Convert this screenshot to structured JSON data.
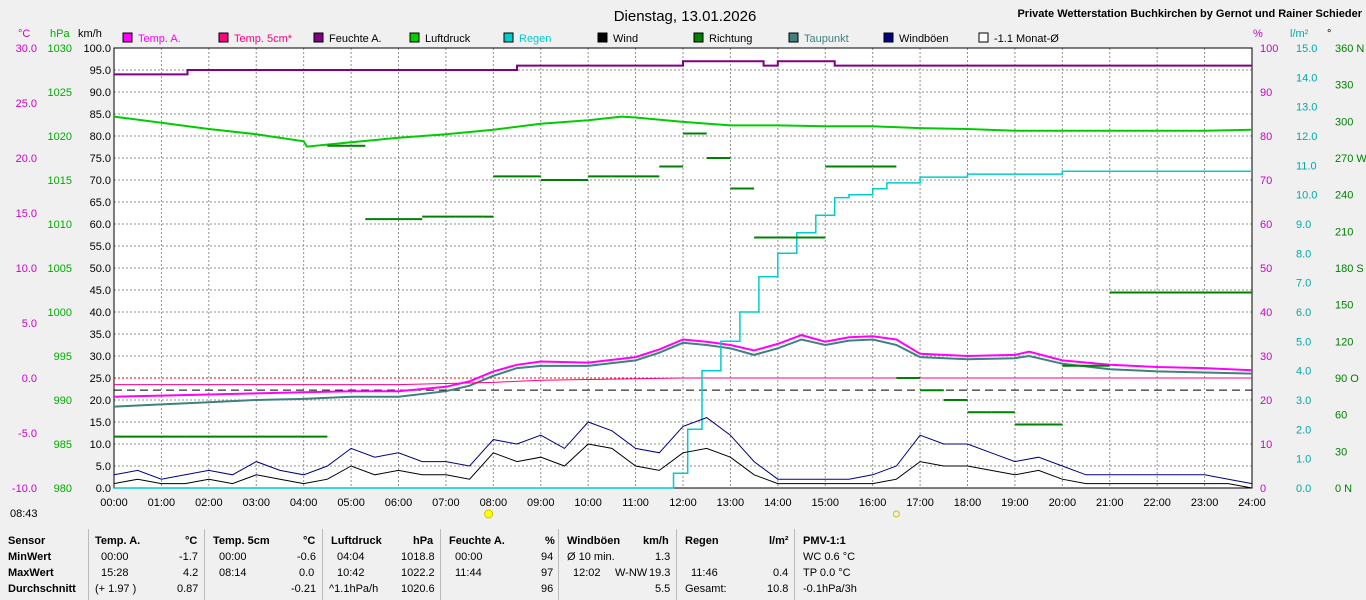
{
  "header": {
    "title": "Dienstag, 13.01.2026",
    "station": "Private Wetterstation Buchkirchen by Gernot und Rainer Schieder",
    "current_time": "08:43"
  },
  "units": {
    "temp": "°C",
    "pressure": "hPa",
    "speed": "km/h",
    "humidity": "%",
    "rain": "l/m²",
    "direction": "°"
  },
  "legend": [
    {
      "label": "Temp. A.",
      "color": "#ff00ff"
    },
    {
      "label": "Temp. 5cm*",
      "color": "#ff0080"
    },
    {
      "label": "Feuchte A.",
      "color": "#800080"
    },
    {
      "label": "Luftdruck",
      "color": "#00cc00"
    },
    {
      "label": "Regen",
      "color": "#00cccc"
    },
    {
      "label": "Wind",
      "color": "#000000"
    },
    {
      "label": "Richtung",
      "color": "#008000"
    },
    {
      "label": "Taupunkt",
      "color": "#408080"
    },
    {
      "label": "Windböen",
      "color": "#000080"
    },
    {
      "label": "-1.1 Monat-Ø",
      "color": "#ffffff"
    }
  ],
  "chart_data": {
    "type": "line",
    "x_range_hours": [
      0,
      24
    ],
    "x_ticks": [
      "00:00",
      "01:00",
      "02:00",
      "03:00",
      "04:00",
      "05:00",
      "06:00",
      "07:00",
      "08:00",
      "09:00",
      "10:00",
      "11:00",
      "12:00",
      "13:00",
      "14:00",
      "15:00",
      "16:00",
      "17:00",
      "18:00",
      "19:00",
      "20:00",
      "21:00",
      "22:00",
      "23:00",
      "24:00"
    ],
    "axes": {
      "temp_ticks": [
        "30.0",
        "25.0",
        "20.0",
        "15.0",
        "10.0",
        "5.0",
        "0.0",
        "-5.0",
        "-10.0"
      ],
      "pressure_ticks": [
        "1030",
        "1025",
        "1020",
        "1015",
        "1010",
        "1005",
        "1000",
        "995",
        "990",
        "985",
        "980"
      ],
      "speed_ticks": [
        "100.0",
        "95.0",
        "90.0",
        "85.0",
        "80.0",
        "75.0",
        "70.0",
        "65.0",
        "60.0",
        "55.0",
        "50.0",
        "45.0",
        "40.0",
        "35.0",
        "30.0",
        "25.0",
        "20.0",
        "15.0",
        "10.0",
        "5.0",
        "0.0"
      ],
      "humidity_ticks": [
        "100",
        "90",
        "80",
        "70",
        "60",
        "50",
        "40",
        "30",
        "20",
        "10",
        "0"
      ],
      "rain_ticks": [
        "15.0",
        "14.0",
        "13.0",
        "12.0",
        "11.0",
        "10.0",
        "9.0",
        "8.0",
        "7.0",
        "6.0",
        "5.0",
        "4.0",
        "3.0",
        "2.0",
        "1.0",
        "0.0"
      ],
      "direction_ticks": [
        "360 N",
        "330",
        "300",
        "270 W",
        "240",
        "210",
        "180 S",
        "150",
        "120",
        "90 O",
        "60",
        "30",
        "0 N"
      ],
      "temp_range": [
        -10,
        30
      ],
      "pressure_range": [
        980,
        1030
      ],
      "speed_range": [
        0,
        100
      ],
      "humidity_range": [
        0,
        100
      ],
      "rain_range": [
        0,
        15
      ],
      "direction_range": [
        0,
        360
      ]
    },
    "monthly_mean_temp": -1.1,
    "series": [
      {
        "name": "Temp. A.",
        "axis": "temp",
        "x": [
          0,
          1,
          2,
          3,
          4,
          5,
          6,
          7,
          7.5,
          8,
          8.5,
          9,
          10,
          11,
          11.5,
          12,
          12.5,
          13,
          13.5,
          14,
          14.5,
          15,
          15.5,
          16,
          16.5,
          17,
          18,
          19,
          19.3,
          20,
          21,
          22,
          23,
          24
        ],
        "y": [
          -1.7,
          -1.6,
          -1.5,
          -1.4,
          -1.3,
          -1.2,
          -1.2,
          -0.8,
          -0.3,
          0.6,
          1.2,
          1.5,
          1.4,
          1.9,
          2.6,
          3.5,
          3.3,
          3.0,
          2.5,
          3.1,
          3.9,
          3.3,
          3.7,
          3.8,
          3.5,
          2.2,
          2.0,
          2.1,
          2.4,
          1.6,
          1.2,
          1.0,
          0.9,
          0.7
        ]
      },
      {
        "name": "Temp. 5cm*",
        "axis": "temp",
        "x": [
          0,
          4,
          6,
          7,
          8,
          9,
          12,
          16,
          20,
          24
        ],
        "y": [
          -0.6,
          -0.6,
          -0.6,
          -0.5,
          -0.4,
          -0.2,
          0.0,
          0.0,
          0.0,
          0.0
        ]
      },
      {
        "name": "Taupunkt",
        "axis": "temp",
        "x": [
          0,
          1,
          2,
          3,
          4,
          5,
          6,
          7,
          7.5,
          8,
          8.5,
          9,
          10,
          11,
          11.5,
          12,
          12.5,
          13,
          13.5,
          14,
          14.5,
          15,
          15.5,
          16,
          16.5,
          17,
          18,
          19,
          19.3,
          20,
          21,
          22,
          23,
          24
        ],
        "y": [
          -2.6,
          -2.4,
          -2.2,
          -2.0,
          -1.9,
          -1.7,
          -1.7,
          -1.2,
          -0.7,
          0.2,
          0.9,
          1.1,
          1.1,
          1.6,
          2.3,
          3.2,
          3.0,
          2.7,
          2.1,
          2.7,
          3.5,
          3.0,
          3.4,
          3.5,
          3.0,
          1.9,
          1.7,
          1.8,
          2.0,
          1.3,
          0.8,
          0.6,
          0.5,
          0.4
        ]
      },
      {
        "name": "Feuchte A.",
        "axis": "humidity",
        "x": [
          0,
          1.5,
          1.55,
          7.8,
          8.5,
          9,
          11.7,
          12,
          13.7,
          14,
          15.2,
          15.5,
          24
        ],
        "y": [
          94,
          94,
          95,
          95,
          96,
          96,
          96,
          97,
          96,
          97,
          96,
          96,
          96
        ]
      },
      {
        "name": "Luftdruck",
        "axis": "pressure",
        "x": [
          0,
          1,
          2,
          3,
          4,
          4.07,
          5,
          6,
          7,
          8,
          9,
          10,
          10.7,
          11,
          12,
          13,
          14,
          15,
          16,
          17,
          18,
          19,
          20,
          21,
          22,
          23,
          24
        ],
        "y": [
          1022.2,
          1021.5,
          1020.8,
          1020.2,
          1019.4,
          1018.8,
          1019.3,
          1019.8,
          1020.2,
          1020.7,
          1021.4,
          1021.8,
          1022.2,
          1022.1,
          1021.6,
          1021.2,
          1021.2,
          1021.1,
          1021.1,
          1020.9,
          1020.8,
          1020.6,
          1020.6,
          1020.6,
          1020.6,
          1020.6,
          1020.7
        ]
      },
      {
        "name": "Regen",
        "axis": "rain",
        "x": [
          0,
          11.5,
          11.8,
          12.1,
          12.4,
          12.8,
          13.2,
          13.6,
          14.0,
          14.4,
          14.8,
          15.2,
          15.5,
          16.0,
          16.3,
          17.0,
          18.0,
          20.0,
          24.0
        ],
        "y": [
          0,
          0,
          0.5,
          2.0,
          4.0,
          5.0,
          6.0,
          7.2,
          8.0,
          8.7,
          9.3,
          9.9,
          10.0,
          10.2,
          10.4,
          10.6,
          10.7,
          10.8,
          10.8
        ]
      },
      {
        "name": "Wind",
        "axis": "speed",
        "x": [
          0,
          0.5,
          1,
          1.5,
          2,
          2.5,
          3,
          3.5,
          4,
          4.5,
          5,
          5.5,
          6,
          6.5,
          7,
          7.5,
          8,
          8.5,
          9,
          9.5,
          10,
          10.5,
          11,
          11.5,
          12,
          12.5,
          13,
          13.5,
          14,
          14.5,
          15,
          15.5,
          16,
          16.5,
          17,
          17.5,
          18,
          18.5,
          19,
          19.5,
          20,
          20.5,
          21,
          21.5,
          22,
          22.5,
          23,
          23.5,
          24
        ],
        "y": [
          1,
          2,
          1,
          1,
          2,
          1,
          3,
          2,
          1,
          2,
          5,
          3,
          4,
          3,
          3,
          2,
          8,
          6,
          7,
          5,
          10,
          9,
          5,
          4,
          8,
          9,
          7,
          3,
          1,
          1,
          1,
          1,
          1,
          2,
          6,
          5,
          5,
          4,
          3,
          4,
          2,
          1,
          1,
          1,
          1,
          1,
          1,
          1,
          0
        ]
      },
      {
        "name": "Windböen",
        "axis": "speed",
        "x": [
          0,
          0.5,
          1,
          1.5,
          2,
          2.5,
          3,
          3.5,
          4,
          4.5,
          5,
          5.5,
          6,
          6.5,
          7,
          7.5,
          8,
          8.5,
          9,
          9.5,
          10,
          10.5,
          11,
          11.5,
          12,
          12.5,
          13,
          13.5,
          14,
          14.5,
          15,
          15.5,
          16,
          16.5,
          17,
          17.5,
          18,
          18.5,
          19,
          19.5,
          20,
          20.5,
          21,
          21.5,
          22,
          22.5,
          23,
          23.5,
          24
        ],
        "y": [
          3,
          4,
          2,
          3,
          4,
          3,
          6,
          4,
          3,
          5,
          9,
          7,
          8,
          6,
          6,
          5,
          11,
          10,
          12,
          9,
          15,
          13,
          9,
          8,
          14,
          16,
          12,
          6,
          2,
          2,
          2,
          2,
          3,
          5,
          12,
          10,
          10,
          8,
          6,
          7,
          5,
          3,
          3,
          3,
          3,
          3,
          3,
          2,
          1
        ]
      },
      {
        "name": "Richtung",
        "axis": "direction",
        "x": [
          0,
          1.5,
          4.5,
          5.0,
          5.3,
          6.0,
          6.5,
          7.2,
          7.8,
          8.0,
          8.5,
          9.0,
          9.5,
          10.0,
          10.5,
          11.0,
          11.5,
          12.0,
          12.5,
          13.0,
          13.5,
          14.0,
          14.5,
          15.0,
          15.5,
          16.0,
          16.5,
          17.0,
          17.5,
          18.0,
          18.5,
          19.0,
          19.5,
          20.0,
          20.5,
          21.0,
          22.0,
          23.0,
          24.0
        ],
        "y": [
          42,
          42,
          280,
          280,
          220,
          220,
          222,
          222,
          222,
          255,
          255,
          252,
          252,
          255,
          255,
          255,
          263,
          290,
          270,
          245,
          205,
          205,
          205,
          263,
          263,
          263,
          90,
          80,
          72,
          62,
          62,
          52,
          52,
          100,
          100,
          160,
          160,
          160,
          160
        ]
      }
    ]
  },
  "stats": {
    "row_labels": [
      "Sensor",
      "MinWert",
      "MaxWert",
      "Durchschnitt"
    ],
    "temp_a": {
      "title": "Temp. A.",
      "unit": "°C",
      "min_time": "00:00",
      "min": "-1.7",
      "max_time": "15:28",
      "max": "4.2",
      "avg_extra": "(+ 1.97 )",
      "avg": "0.87"
    },
    "temp_5cm": {
      "title": "Temp. 5cm",
      "unit": "°C",
      "min_time": "00:00",
      "min": "-0.6",
      "max_time": "08:14",
      "max": "0.0",
      "avg": "-0.21"
    },
    "luftdruck": {
      "title": "Luftdruck",
      "unit": "hPa",
      "min_time": "04:04",
      "min": "1018.8",
      "max_time": "10:42",
      "max": "1022.2",
      "avg_extra": "^1.1hPa/h",
      "avg": "1020.6"
    },
    "feuchte": {
      "title": "Feuchte A.",
      "unit": "%",
      "min_time": "00:00",
      "min": "94",
      "max_time": "11:44",
      "max": "97",
      "avg": "96"
    },
    "windboen": {
      "title": "Windböen",
      "unit": "km/h",
      "min_label": "Ø 10 min.",
      "min": "1.3",
      "max_time": "12:02",
      "max_dir": "W-NW",
      "max": "19.3",
      "avg": "5.5"
    },
    "regen": {
      "title": "Regen",
      "unit": "l/m²",
      "max_time": "11:46",
      "max": "0.4",
      "avg_label": "Gesamt:",
      "avg": "10.8"
    },
    "pmv": {
      "title": "PMV-1:1",
      "min": "WC 0.6 °C",
      "max": "TP 0.0 °C",
      "avg": "-0.1hPa/3h"
    }
  }
}
